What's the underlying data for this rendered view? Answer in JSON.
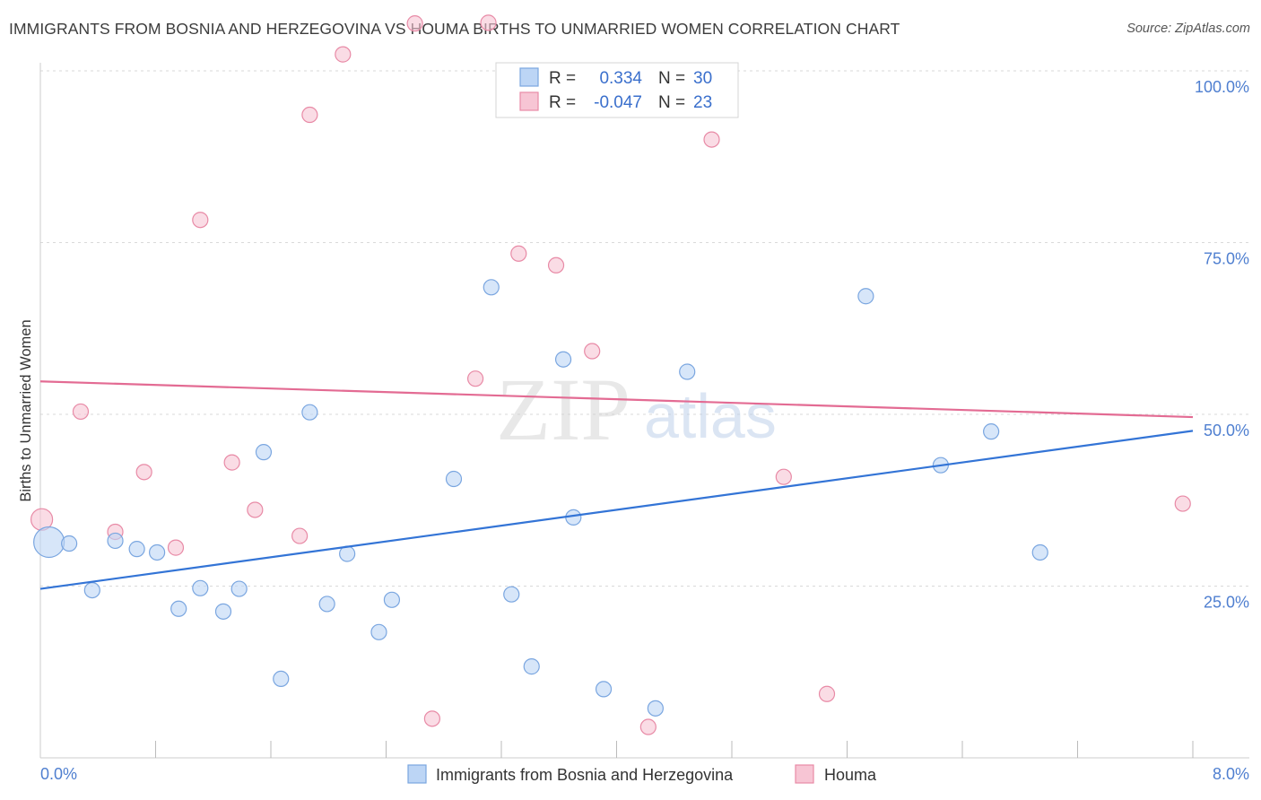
{
  "title": "IMMIGRANTS FROM BOSNIA AND HERZEGOVINA VS HOUMA BIRTHS TO UNMARRIED WOMEN CORRELATION CHART",
  "source": "Source: ZipAtlas.com",
  "watermark": {
    "zip": "ZIP",
    "atlas": "atlas"
  },
  "colors": {
    "blue_fill": "#bcd5f5",
    "blue_stroke": "#7aa6e0",
    "blue_line": "#3374d6",
    "pink_fill": "#f7c5d4",
    "pink_stroke": "#e88aa6",
    "pink_line": "#e36b93",
    "grid": "#d9d9d9",
    "tick_text": "#4f7fd0"
  },
  "stats": [
    {
      "r_label": "R =",
      "r_value": "0.334",
      "n_label": "N =",
      "n_value": "30"
    },
    {
      "r_label": "R =",
      "r_value": "-0.047",
      "n_label": "N =",
      "n_value": "23"
    }
  ],
  "chart_data": {
    "type": "scatter",
    "xlabel": "",
    "ylabel": "Births to Unmarried Women",
    "xlim": [
      0,
      8
    ],
    "ylim": [
      0,
      100
    ],
    "x_tick_labels": [
      "0.0%",
      "8.0%"
    ],
    "y_ticks": [
      25,
      50,
      75,
      100
    ],
    "y_tick_labels": [
      "25.0%",
      "50.0%",
      "75.0%",
      "100.0%"
    ],
    "grid": true,
    "legend_position": "bottom-center",
    "series": [
      {
        "name": "Immigrants from Bosnia and Herzegovina",
        "color": "blue",
        "trend": {
          "x": [
            0,
            8
          ],
          "y": [
            24.6,
            47.6
          ]
        },
        "points": [
          {
            "x": 0.06,
            "y": 31.4,
            "big": true
          },
          {
            "x": 0.2,
            "y": 31.2
          },
          {
            "x": 0.36,
            "y": 24.4
          },
          {
            "x": 0.52,
            "y": 31.6
          },
          {
            "x": 0.67,
            "y": 30.4
          },
          {
            "x": 0.81,
            "y": 29.9
          },
          {
            "x": 0.96,
            "y": 21.7
          },
          {
            "x": 1.11,
            "y": 24.7
          },
          {
            "x": 1.27,
            "y": 21.3
          },
          {
            "x": 1.38,
            "y": 24.6
          },
          {
            "x": 1.55,
            "y": 44.5
          },
          {
            "x": 1.67,
            "y": 11.5
          },
          {
            "x": 1.87,
            "y": 50.3
          },
          {
            "x": 1.99,
            "y": 22.4
          },
          {
            "x": 2.13,
            "y": 29.7
          },
          {
            "x": 2.35,
            "y": 18.3
          },
          {
            "x": 2.44,
            "y": 23.0
          },
          {
            "x": 2.87,
            "y": 40.6
          },
          {
            "x": 3.13,
            "y": 68.5
          },
          {
            "x": 3.27,
            "y": 23.8
          },
          {
            "x": 3.41,
            "y": 13.3
          },
          {
            "x": 3.63,
            "y": 58.0
          },
          {
            "x": 3.7,
            "y": 35.0
          },
          {
            "x": 3.91,
            "y": 10.0
          },
          {
            "x": 4.27,
            "y": 7.2
          },
          {
            "x": 4.49,
            "y": 56.2
          },
          {
            "x": 5.73,
            "y": 67.2
          },
          {
            "x": 6.25,
            "y": 42.6
          },
          {
            "x": 6.6,
            "y": 47.5
          },
          {
            "x": 6.94,
            "y": 29.9
          }
        ]
      },
      {
        "name": "Houma",
        "color": "pink",
        "trend": {
          "x": [
            0,
            8
          ],
          "y": [
            54.8,
            49.6
          ]
        },
        "points": [
          {
            "x": 0.01,
            "y": 34.7,
            "mid": true
          },
          {
            "x": 0.28,
            "y": 50.4
          },
          {
            "x": 0.52,
            "y": 32.9
          },
          {
            "x": 0.72,
            "y": 41.6
          },
          {
            "x": 0.94,
            "y": 30.6
          },
          {
            "x": 1.11,
            "y": 78.3
          },
          {
            "x": 1.33,
            "y": 43.0
          },
          {
            "x": 1.49,
            "y": 36.1
          },
          {
            "x": 1.8,
            "y": 32.3
          },
          {
            "x": 1.87,
            "y": 93.6
          },
          {
            "x": 2.1,
            "y": 102.4
          },
          {
            "x": 2.6,
            "y": 106.9
          },
          {
            "x": 2.72,
            "y": 5.7
          },
          {
            "x": 3.02,
            "y": 55.2
          },
          {
            "x": 3.11,
            "y": 107.0
          },
          {
            "x": 3.32,
            "y": 73.4
          },
          {
            "x": 3.58,
            "y": 71.7
          },
          {
            "x": 3.83,
            "y": 59.2
          },
          {
            "x": 4.22,
            "y": 4.5
          },
          {
            "x": 4.66,
            "y": 90.0
          },
          {
            "x": 5.16,
            "y": 40.9
          },
          {
            "x": 5.46,
            "y": 9.3
          },
          {
            "x": 7.93,
            "y": 37.0
          }
        ]
      }
    ]
  }
}
